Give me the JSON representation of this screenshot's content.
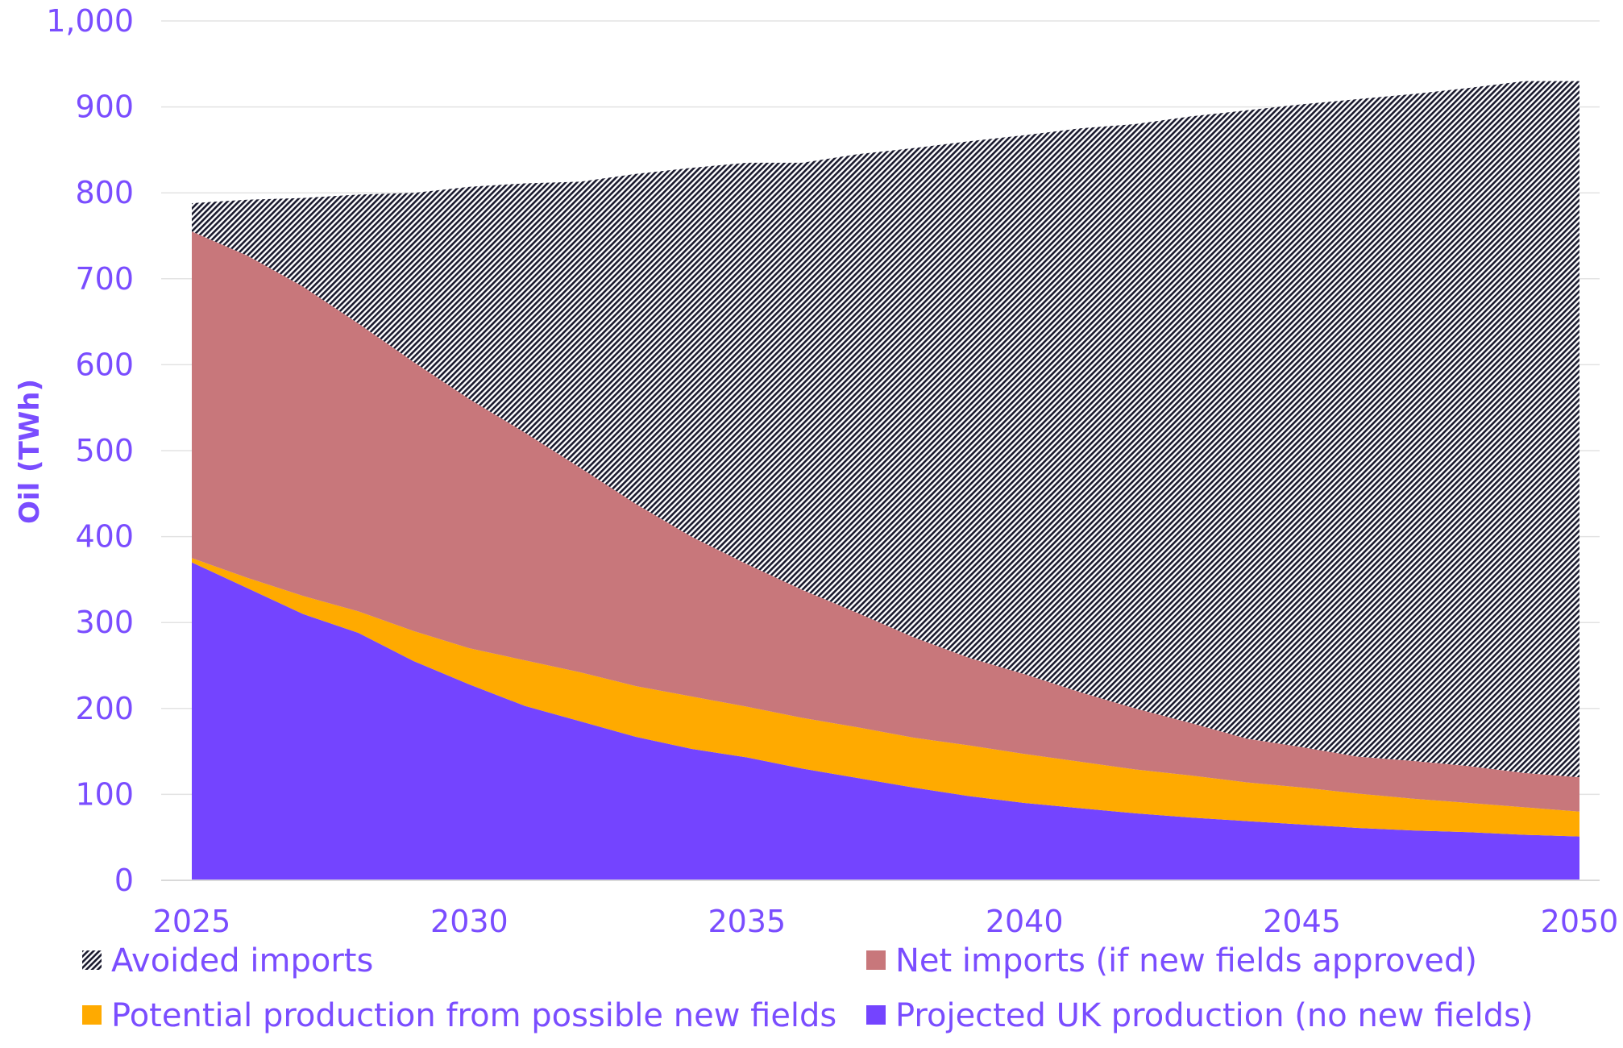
{
  "chart_data": {
    "type": "area",
    "stacked": true,
    "title": "",
    "xlabel": "",
    "ylabel": "Oil (TWh)",
    "xlim": [
      2025,
      2050
    ],
    "ylim": [
      0,
      1000
    ],
    "x_ticks": [
      "2025",
      "2030",
      "2035",
      "2040",
      "2045",
      "2050"
    ],
    "y_ticks": [
      "0",
      "100",
      "200",
      "300",
      "400",
      "500",
      "600",
      "700",
      "800",
      "900",
      "1,000"
    ],
    "grid": "horizontal",
    "legend_position": "bottom",
    "x": [
      2025,
      2026,
      2027,
      2028,
      2029,
      2030,
      2031,
      2032,
      2033,
      2034,
      2035,
      2036,
      2037,
      2038,
      2039,
      2040,
      2041,
      2042,
      2043,
      2044,
      2045,
      2046,
      2047,
      2048,
      2049,
      2050
    ],
    "series": [
      {
        "name": "Projected UK production (no new fields)",
        "color": "#7444ff",
        "pattern": "solid",
        "values": [
          370,
          340,
          310,
          288,
          255,
          228,
          203,
          185,
          167,
          153,
          143,
          130,
          119,
          108,
          98,
          90,
          84,
          78,
          73,
          69,
          65,
          61,
          58,
          56,
          53,
          51
        ]
      },
      {
        "name": "Potential production from possible new fields",
        "color": "#ffaa00",
        "pattern": "solid",
        "values": [
          5,
          12,
          21,
          25,
          35,
          42,
          53,
          57,
          59,
          61,
          59,
          59,
          59,
          58,
          59,
          57,
          54,
          51,
          49,
          45,
          43,
          40,
          37,
          34,
          32,
          29
        ]
      },
      {
        "name": "Net imports (if new fields approved)",
        "color": "#c8777b",
        "pattern": "solid",
        "values": [
          380,
          375,
          360,
          335,
          313,
          290,
          265,
          238,
          212,
          186,
          166,
          149,
          133,
          117,
          102,
          93,
          81,
          71,
          61,
          51,
          47,
          43,
          44,
          43,
          40,
          40
        ]
      },
      {
        "name": "Avoided imports",
        "color": "#1a1a2e",
        "pattern": "hatch",
        "values": [
          33,
          65,
          103,
          150,
          197,
          247,
          290,
          333,
          384,
          429,
          467,
          497,
          534,
          569,
          601,
          627,
          656,
          680,
          706,
          731,
          748,
          765,
          776,
          789,
          805,
          810
        ]
      }
    ],
    "legend": [
      {
        "label": "Avoided imports",
        "series": 3
      },
      {
        "label": "Net imports (if new fields approved)",
        "series": 2
      },
      {
        "label": "Potential production from possible new fields",
        "series": 1
      },
      {
        "label": "Projected UK production (no new fields)",
        "series": 0
      }
    ]
  }
}
